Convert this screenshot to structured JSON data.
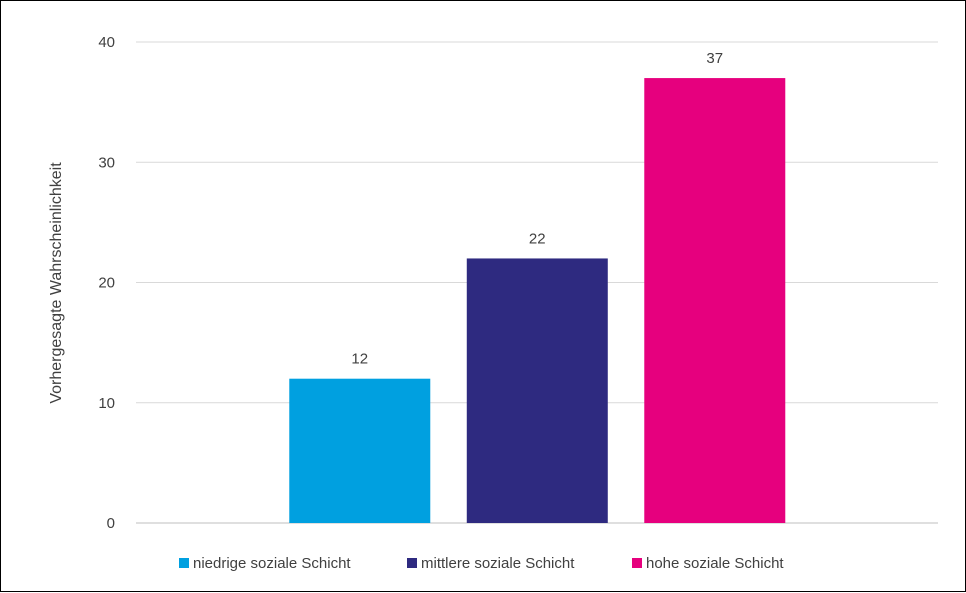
{
  "chart_data": {
    "type": "bar",
    "title": "",
    "xlabel": "",
    "ylabel": "Vorhergesagte Wahrscheinlichkeit",
    "ylim": [
      0,
      40
    ],
    "yticks": [
      0,
      10,
      20,
      30,
      40
    ],
    "grid": true,
    "legend_position": "bottom",
    "series": [
      {
        "name": "niedrige soziale Schicht",
        "value": 12,
        "color": "#00A0E0"
      },
      {
        "name": "mittlere soziale Schicht",
        "value": 22,
        "color": "#2E2A80"
      },
      {
        "name": "hohe soziale Schicht",
        "value": 37,
        "color": "#E6007E"
      }
    ]
  }
}
